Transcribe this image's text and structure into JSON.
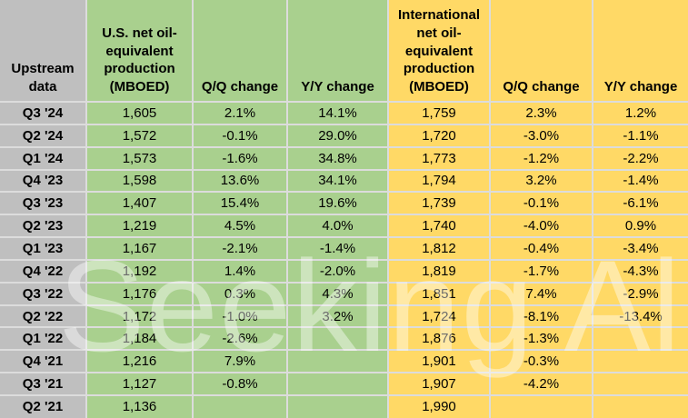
{
  "watermark": "Seeking Alpha",
  "colors": {
    "quarter_bg": "#BFBFBF",
    "us_bg": "#A9D08E",
    "intl_bg": "#FFD966",
    "grid": "#DCDCDC",
    "text": "#000000"
  },
  "chart_data": {
    "type": "table",
    "title": "Upstream data",
    "columns": [
      {
        "id": "quarter",
        "label": "Upstream\ndata"
      },
      {
        "id": "us_production",
        "label": "U.S. net oil-\nequivalent\nproduction\n(MBOED)"
      },
      {
        "id": "us_qq_change",
        "label": "Q/Q change"
      },
      {
        "id": "us_yy_change",
        "label": "Y/Y change"
      },
      {
        "id": "intl_production",
        "label": "International\nnet oil-\nequivalent\nproduction\n(MBOED)"
      },
      {
        "id": "intl_qq_change",
        "label": "Q/Q change"
      },
      {
        "id": "intl_yy_change",
        "label": "Y/Y change"
      }
    ],
    "rows": [
      {
        "quarter": "Q3 '24",
        "us_production": "1,605",
        "us_qq_change": "2.1%",
        "us_yy_change": "14.1%",
        "intl_production": "1,759",
        "intl_qq_change": "2.3%",
        "intl_yy_change": "1.2%"
      },
      {
        "quarter": "Q2 '24",
        "us_production": "1,572",
        "us_qq_change": "-0.1%",
        "us_yy_change": "29.0%",
        "intl_production": "1,720",
        "intl_qq_change": "-3.0%",
        "intl_yy_change": "-1.1%"
      },
      {
        "quarter": "Q1 '24",
        "us_production": "1,573",
        "us_qq_change": "-1.6%",
        "us_yy_change": "34.8%",
        "intl_production": "1,773",
        "intl_qq_change": "-1.2%",
        "intl_yy_change": "-2.2%"
      },
      {
        "quarter": "Q4 '23",
        "us_production": "1,598",
        "us_qq_change": "13.6%",
        "us_yy_change": "34.1%",
        "intl_production": "1,794",
        "intl_qq_change": "3.2%",
        "intl_yy_change": "-1.4%"
      },
      {
        "quarter": "Q3 '23",
        "us_production": "1,407",
        "us_qq_change": "15.4%",
        "us_yy_change": "19.6%",
        "intl_production": "1,739",
        "intl_qq_change": "-0.1%",
        "intl_yy_change": "-6.1%"
      },
      {
        "quarter": "Q2 '23",
        "us_production": "1,219",
        "us_qq_change": "4.5%",
        "us_yy_change": "4.0%",
        "intl_production": "1,740",
        "intl_qq_change": "-4.0%",
        "intl_yy_change": "0.9%"
      },
      {
        "quarter": "Q1 '23",
        "us_production": "1,167",
        "us_qq_change": "-2.1%",
        "us_yy_change": "-1.4%",
        "intl_production": "1,812",
        "intl_qq_change": "-0.4%",
        "intl_yy_change": "-3.4%"
      },
      {
        "quarter": "Q4 '22",
        "us_production": "1,192",
        "us_qq_change": "1.4%",
        "us_yy_change": "-2.0%",
        "intl_production": "1,819",
        "intl_qq_change": "-1.7%",
        "intl_yy_change": "-4.3%"
      },
      {
        "quarter": "Q3 '22",
        "us_production": "1,176",
        "us_qq_change": "0.3%",
        "us_yy_change": "4.3%",
        "intl_production": "1,851",
        "intl_qq_change": "7.4%",
        "intl_yy_change": "-2.9%"
      },
      {
        "quarter": "Q2 '22",
        "us_production": "1,172",
        "us_qq_change": "-1.0%",
        "us_yy_change": "3.2%",
        "intl_production": "1,724",
        "intl_qq_change": "-8.1%",
        "intl_yy_change": "-13.4%"
      },
      {
        "quarter": "Q1 '22",
        "us_production": "1,184",
        "us_qq_change": "-2.6%",
        "us_yy_change": "",
        "intl_production": "1,876",
        "intl_qq_change": "-1.3%",
        "intl_yy_change": ""
      },
      {
        "quarter": "Q4 '21",
        "us_production": "1,216",
        "us_qq_change": "7.9%",
        "us_yy_change": "",
        "intl_production": "1,901",
        "intl_qq_change": "-0.3%",
        "intl_yy_change": ""
      },
      {
        "quarter": "Q3 '21",
        "us_production": "1,127",
        "us_qq_change": "-0.8%",
        "us_yy_change": "",
        "intl_production": "1,907",
        "intl_qq_change": "-4.2%",
        "intl_yy_change": ""
      },
      {
        "quarter": "Q2 '21",
        "us_production": "1,136",
        "us_qq_change": "",
        "us_yy_change": "",
        "intl_production": "1,990",
        "intl_qq_change": "",
        "intl_yy_change": ""
      }
    ]
  }
}
